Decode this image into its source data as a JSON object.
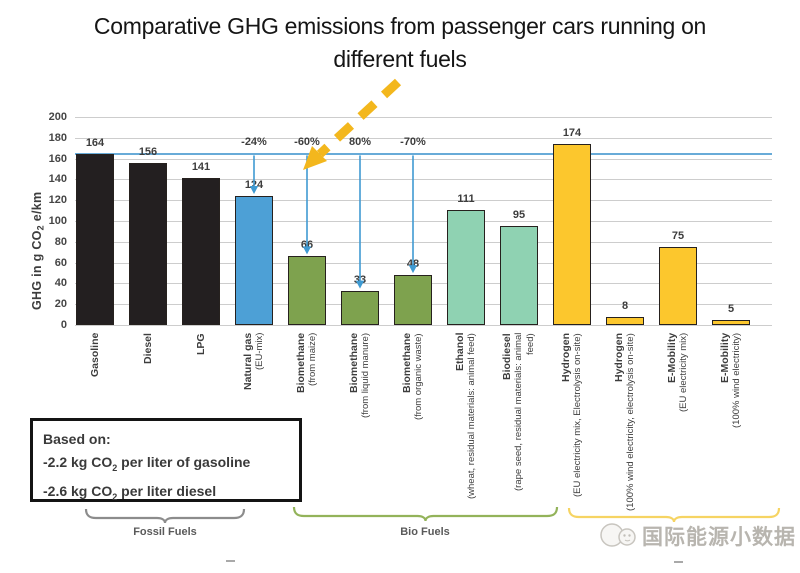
{
  "title": {
    "line1": "Comparative GHG emissions from passenger cars running on",
    "line2": "different fuels"
  },
  "chart_data": {
    "type": "bar",
    "title": "Comparative GHG emissions from passenger cars running on different fuels",
    "ylabel": {
      "pre": "GHG in g CO",
      "sub": "2",
      "post": " e/km"
    },
    "ylim": [
      0,
      200
    ],
    "ytick_step": 20,
    "grid": true,
    "reference_line": {
      "value": 164,
      "color": "#68abd8"
    },
    "bars": [
      {
        "name": "Gasoline",
        "detail": "",
        "value": 164,
        "color": "#231f20"
      },
      {
        "name": "Diesel",
        "detail": "",
        "value": 156,
        "color": "#231f20"
      },
      {
        "name": "LPG",
        "detail": "",
        "value": 141,
        "color": "#231f20"
      },
      {
        "name": "Natural gas",
        "detail": "(EU-mix)",
        "value": 124,
        "color": "#4da0d6"
      },
      {
        "name": "Biomethane",
        "detail": "(from maize)",
        "value": 66,
        "color": "#7ea24e"
      },
      {
        "name": "Biomethane",
        "detail": "(from liquid manure)",
        "value": 33,
        "color": "#7ea24e"
      },
      {
        "name": "Biomethane",
        "detail": "(from organic waste)",
        "value": 48,
        "color": "#7ea24e"
      },
      {
        "name": "Ethanol",
        "detail": "(wheat, residual materials: animal feed)",
        "value": 111,
        "color": "#8fd2b2"
      },
      {
        "name": "Biodiesel",
        "detail": "(rape seed, residual materials: animal feed)",
        "value": 95,
        "color": "#8fd2b2"
      },
      {
        "name": "Hydrogen",
        "detail": "(EU electricity mix, Electrolysis on-site)",
        "value": 174,
        "color": "#fcc72d"
      },
      {
        "name": "Hydrogen",
        "detail": "(100% wind electricity, electrolysis on-site)",
        "value": 8,
        "color": "#fcc72d"
      },
      {
        "name": "E-Mobility",
        "detail": "(EU electricity mix)",
        "value": 75,
        "color": "#fcc72d"
      },
      {
        "name": "E-Mobility",
        "detail": "(100% wind electricity)",
        "value": 5,
        "color": "#fcc72d"
      }
    ],
    "annotations": [
      {
        "bar_index": 3,
        "label": "-24%"
      },
      {
        "bar_index": 4,
        "label": "-60%"
      },
      {
        "bar_index": 5,
        "label": "80%"
      },
      {
        "bar_index": 6,
        "label": "-70%"
      }
    ],
    "highlight_arrow": {
      "points_to": "-60%",
      "color": "#f3b71d",
      "style": "dashed"
    },
    "groups": [
      {
        "label": "Fossil Fuels",
        "color": "#8c8c8c"
      },
      {
        "label": "Bio Fuels",
        "color": "#93b35a"
      },
      {
        "label": "",
        "color": "#f6d463"
      }
    ],
    "legend_position": "none"
  },
  "based_on": {
    "heading": "Based on:",
    "lines": [
      {
        "pre": "-2.2 kg CO",
        "sub": "2",
        "post": " per liter of gasoline"
      },
      {
        "pre": "-2.6 kg CO",
        "sub": "2",
        "post": " per liter diesel"
      }
    ]
  },
  "watermark": {
    "text": "国际能源小数据"
  }
}
